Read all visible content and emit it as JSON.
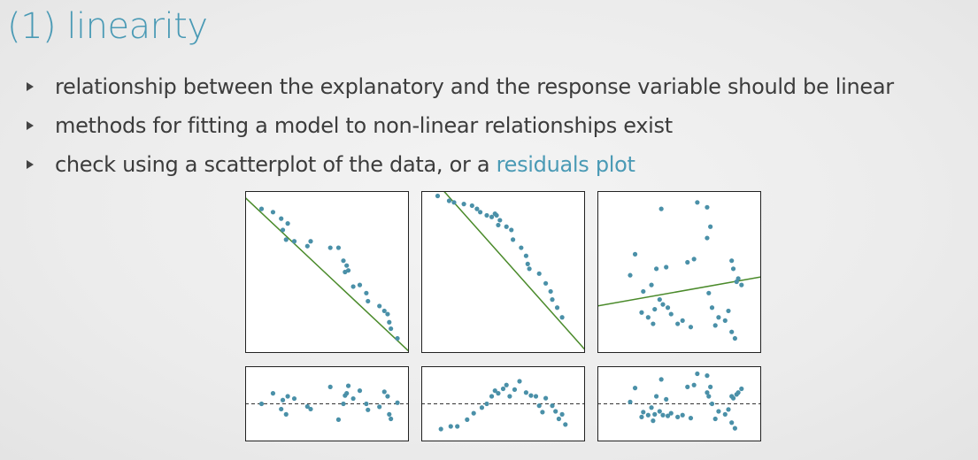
{
  "slide": {
    "title": "(1) linearity",
    "bullets": [
      {
        "text": "relationship between the explanatory and the response variable should be linear",
        "link": ""
      },
      {
        "text": "methods for fitting a model to non-linear relationships exist",
        "link": ""
      },
      {
        "text": "check using a scatterplot of the data, or a ",
        "link": "residuals plot"
      }
    ]
  },
  "colors": {
    "title": "#4a9ab5",
    "link": "#4a9ab5",
    "point": "#4a90a8",
    "fit_line": "#4a8a2a",
    "residual_zero_line": "#333333"
  },
  "chart_data": [
    {
      "type": "scatter",
      "title": "",
      "xlabel": "",
      "ylabel": "",
      "xlim": [
        0,
        1
      ],
      "ylim": [
        0,
        1
      ],
      "grid": false,
      "fit_line": [
        [
          0,
          0.96
        ],
        [
          1,
          0.01
        ]
      ],
      "x": [
        0.1,
        0.17,
        0.22,
        0.26,
        0.23,
        0.25,
        0.3,
        0.4,
        0.38,
        0.52,
        0.57,
        0.6,
        0.62,
        0.63,
        0.61,
        0.66,
        0.7,
        0.74,
        0.75,
        0.82,
        0.85,
        0.87,
        0.88,
        0.89,
        0.93
      ],
      "y": [
        0.89,
        0.87,
        0.83,
        0.8,
        0.76,
        0.7,
        0.69,
        0.69,
        0.66,
        0.65,
        0.65,
        0.57,
        0.54,
        0.51,
        0.5,
        0.41,
        0.42,
        0.37,
        0.32,
        0.29,
        0.26,
        0.24,
        0.19,
        0.15,
        0.09
      ]
    },
    {
      "type": "scatter",
      "title": "",
      "xlabel": "",
      "ylabel": "",
      "xlim": [
        0,
        1
      ],
      "ylim": [
        0,
        1
      ],
      "grid": false,
      "fit_line": [
        [
          0.12,
          1.02
        ],
        [
          1,
          0.02
        ]
      ],
      "x": [
        0.1,
        0.17,
        0.2,
        0.26,
        0.31,
        0.34,
        0.36,
        0.4,
        0.43,
        0.45,
        0.46,
        0.48,
        0.47,
        0.52,
        0.55,
        0.56,
        0.61,
        0.64,
        0.65,
        0.66,
        0.72,
        0.76,
        0.79,
        0.8,
        0.83,
        0.86
      ],
      "y": [
        0.97,
        0.94,
        0.93,
        0.92,
        0.91,
        0.89,
        0.87,
        0.85,
        0.84,
        0.86,
        0.85,
        0.82,
        0.79,
        0.78,
        0.76,
        0.7,
        0.65,
        0.6,
        0.55,
        0.52,
        0.49,
        0.43,
        0.38,
        0.33,
        0.28,
        0.22
      ]
    },
    {
      "type": "scatter",
      "title": "",
      "xlabel": "",
      "ylabel": "",
      "xlim": [
        0,
        1
      ],
      "ylim": [
        0,
        1
      ],
      "grid": false,
      "fit_line": [
        [
          0,
          0.29
        ],
        [
          1,
          0.47
        ]
      ],
      "x": [
        0.39,
        0.61,
        0.67,
        0.69,
        0.67,
        0.59,
        0.55,
        0.42,
        0.36,
        0.23,
        0.2,
        0.28,
        0.33,
        0.38,
        0.4,
        0.43,
        0.35,
        0.27,
        0.34,
        0.31,
        0.45,
        0.49,
        0.52,
        0.57,
        0.68,
        0.7,
        0.74,
        0.72,
        0.78,
        0.8,
        0.82,
        0.84,
        0.82,
        0.83,
        0.86,
        0.88,
        0.85
      ],
      "y": [
        0.89,
        0.93,
        0.9,
        0.78,
        0.71,
        0.58,
        0.56,
        0.53,
        0.52,
        0.61,
        0.48,
        0.38,
        0.42,
        0.33,
        0.3,
        0.28,
        0.27,
        0.25,
        0.18,
        0.22,
        0.24,
        0.18,
        0.2,
        0.16,
        0.37,
        0.28,
        0.22,
        0.17,
        0.2,
        0.26,
        0.13,
        0.09,
        0.57,
        0.52,
        0.46,
        0.42,
        0.44
      ]
    },
    {
      "type": "scatter",
      "title": "",
      "xlabel": "",
      "ylabel": "",
      "xlim": [
        0,
        1
      ],
      "ylim": [
        -1,
        1
      ],
      "grid": false,
      "reference_line": 0,
      "x": [
        0.1,
        0.17,
        0.22,
        0.26,
        0.23,
        0.25,
        0.3,
        0.4,
        0.38,
        0.52,
        0.57,
        0.6,
        0.62,
        0.63,
        0.61,
        0.66,
        0.7,
        0.74,
        0.75,
        0.82,
        0.85,
        0.87,
        0.88,
        0.89,
        0.93
      ],
      "y": [
        0.0,
        0.28,
        -0.14,
        0.2,
        0.1,
        -0.28,
        0.14,
        -0.14,
        -0.07,
        0.45,
        -0.42,
        0.0,
        0.28,
        0.48,
        0.22,
        0.14,
        0.35,
        0.0,
        -0.16,
        -0.08,
        0.32,
        0.2,
        -0.28,
        -0.4,
        0.03
      ]
    },
    {
      "type": "scatter",
      "title": "",
      "xlabel": "",
      "ylabel": "",
      "xlim": [
        0,
        1
      ],
      "ylim": [
        -1,
        1
      ],
      "grid": false,
      "reference_line": 0,
      "x": [
        0.12,
        0.18,
        0.22,
        0.28,
        0.32,
        0.37,
        0.4,
        0.43,
        0.45,
        0.47,
        0.5,
        0.52,
        0.54,
        0.57,
        0.6,
        0.64,
        0.67,
        0.7,
        0.72,
        0.74,
        0.76,
        0.8,
        0.82,
        0.84,
        0.86,
        0.88
      ],
      "y": [
        -0.67,
        -0.6,
        -0.6,
        -0.42,
        -0.25,
        -0.1,
        0.0,
        0.2,
        0.35,
        0.28,
        0.4,
        0.5,
        0.2,
        0.38,
        0.6,
        0.3,
        0.22,
        0.2,
        -0.05,
        -0.22,
        0.15,
        -0.05,
        -0.2,
        -0.4,
        -0.28,
        -0.55
      ]
    },
    {
      "type": "scatter",
      "title": "",
      "xlabel": "",
      "ylabel": "",
      "xlim": [
        0,
        1
      ],
      "ylim": [
        -1,
        1
      ],
      "grid": false,
      "reference_line": 0,
      "x": [
        0.39,
        0.61,
        0.67,
        0.69,
        0.67,
        0.59,
        0.55,
        0.42,
        0.36,
        0.23,
        0.2,
        0.28,
        0.33,
        0.38,
        0.4,
        0.43,
        0.35,
        0.27,
        0.34,
        0.31,
        0.45,
        0.49,
        0.52,
        0.57,
        0.68,
        0.7,
        0.74,
        0.72,
        0.78,
        0.8,
        0.82,
        0.84,
        0.82,
        0.83,
        0.86,
        0.88,
        0.85
      ],
      "y": [
        0.65,
        0.8,
        0.75,
        0.45,
        0.3,
        0.5,
        0.45,
        0.12,
        0.2,
        0.42,
        0.05,
        -0.22,
        -0.1,
        -0.2,
        -0.3,
        -0.32,
        -0.28,
        -0.35,
        -0.45,
        -0.3,
        -0.25,
        -0.35,
        -0.3,
        -0.38,
        0.2,
        0.0,
        -0.2,
        -0.4,
        -0.28,
        -0.15,
        -0.5,
        -0.65,
        0.2,
        0.15,
        0.3,
        0.4,
        0.25
      ]
    }
  ]
}
